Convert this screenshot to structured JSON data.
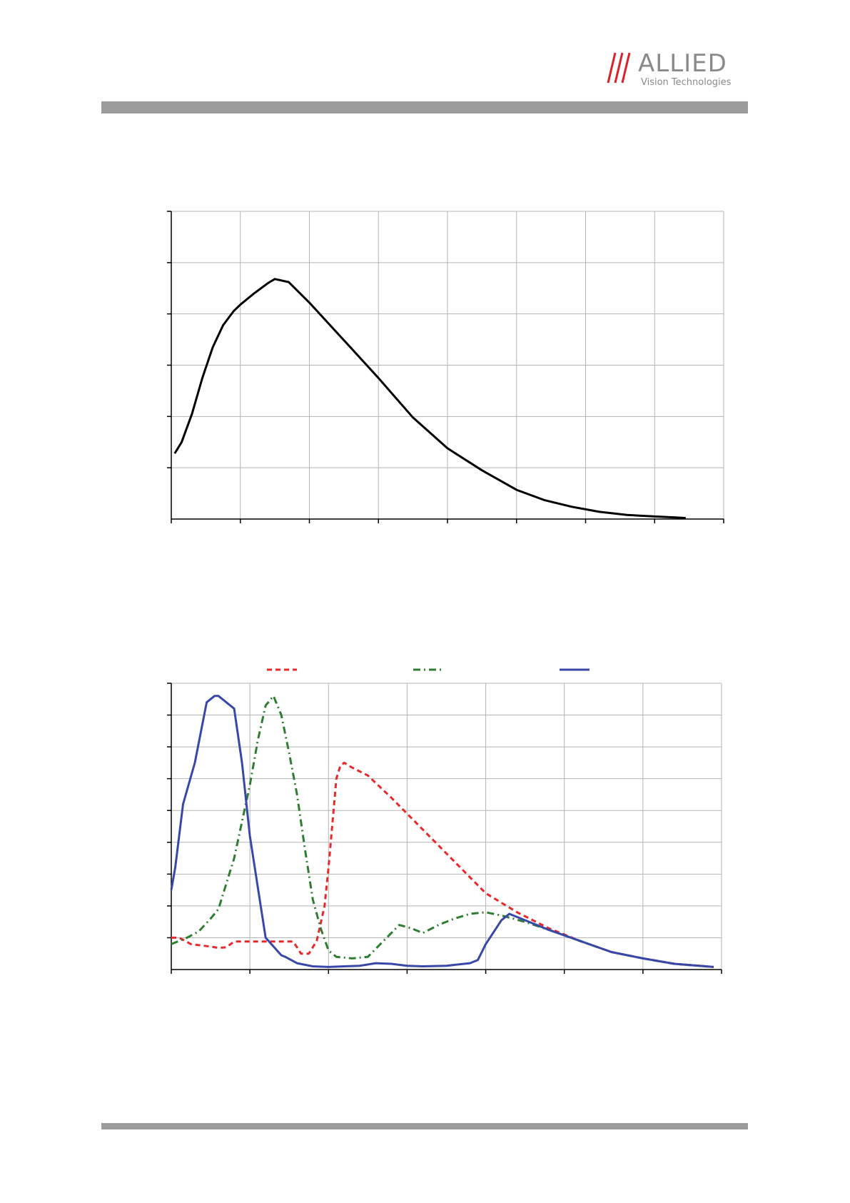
{
  "header": {
    "logo_brand": "ALLIED",
    "logo_sub": "Vision Technologies",
    "brand_color": "#d8232a",
    "rule_color": "#9c9c9c"
  },
  "chart_data": [
    {
      "type": "line",
      "title": "",
      "xlabel": "",
      "ylabel": "",
      "xlim": [
        0,
        8
      ],
      "ylim": [
        0,
        6
      ],
      "x_divisions": 8,
      "y_divisions": 6,
      "grid": true,
      "series": [
        {
          "color": "#000000",
          "dash": "solid",
          "x": [
            0.05,
            0.15,
            0.3,
            0.45,
            0.6,
            0.75,
            0.9,
            1.0,
            1.2,
            1.4,
            1.5,
            1.7,
            2.0,
            2.3,
            2.6,
            3.0,
            3.5,
            4.0,
            4.5,
            5.0,
            5.4,
            5.8,
            6.2,
            6.6,
            7.0,
            7.3,
            7.45
          ],
          "y": [
            1.28,
            1.5,
            2.05,
            2.75,
            3.35,
            3.78,
            4.05,
            4.18,
            4.4,
            4.6,
            4.68,
            4.62,
            4.22,
            3.78,
            3.34,
            2.75,
            1.98,
            1.38,
            0.95,
            0.57,
            0.37,
            0.24,
            0.14,
            0.08,
            0.05,
            0.03,
            0.02
          ]
        }
      ]
    },
    {
      "type": "line",
      "title": "",
      "xlabel": "",
      "ylabel": "",
      "xlim": [
        0,
        7
      ],
      "ylim": [
        0,
        9
      ],
      "x_divisions": 7,
      "y_divisions": 9,
      "grid": true,
      "legend": "top",
      "series": [
        {
          "color": "#e8282a",
          "dash": "dashed",
          "x": [
            0.0,
            0.1,
            0.25,
            0.5,
            0.6,
            0.7,
            0.8,
            1.0,
            1.3,
            1.55,
            1.6,
            1.65,
            1.75,
            1.85,
            1.95,
            2.0,
            2.05,
            2.1,
            2.15,
            2.2,
            2.3,
            2.5,
            2.8,
            3.2,
            3.6,
            4.0,
            4.4,
            4.8,
            5.2,
            5.6,
            6.0,
            6.4,
            6.9
          ],
          "y": [
            1.0,
            1.0,
            0.8,
            0.72,
            0.68,
            0.7,
            0.88,
            0.88,
            0.88,
            0.88,
            0.7,
            0.5,
            0.5,
            0.9,
            2.0,
            3.2,
            4.6,
            6.0,
            6.4,
            6.5,
            6.35,
            6.1,
            5.4,
            4.4,
            3.4,
            2.4,
            1.8,
            1.3,
            0.9,
            0.55,
            0.35,
            0.18,
            0.08
          ]
        },
        {
          "color": "#2e7d32",
          "dash": "dashdot",
          "x": [
            0.0,
            0.1,
            0.2,
            0.35,
            0.5,
            0.6,
            0.8,
            1.0,
            1.1,
            1.2,
            1.3,
            1.4,
            1.5,
            1.6,
            1.7,
            1.8,
            1.9,
            2.0,
            2.1,
            2.3,
            2.5,
            2.7,
            2.9,
            3.05,
            3.2,
            3.4,
            3.6,
            3.8,
            4.0,
            4.2,
            4.5,
            4.8,
            5.2,
            5.6,
            6.0,
            6.4,
            6.9
          ],
          "y": [
            0.8,
            0.9,
            1.0,
            1.2,
            1.6,
            1.9,
            3.5,
            5.8,
            7.2,
            8.3,
            8.6,
            8.0,
            6.8,
            5.5,
            3.8,
            2.2,
            1.3,
            0.6,
            0.4,
            0.35,
            0.4,
            0.9,
            1.4,
            1.3,
            1.15,
            1.4,
            1.6,
            1.75,
            1.8,
            1.7,
            1.5,
            1.25,
            0.9,
            0.55,
            0.35,
            0.18,
            0.08
          ]
        },
        {
          "color": "#3848a8",
          "dash": "solid",
          "x": [
            0.0,
            0.05,
            0.15,
            0.3,
            0.45,
            0.55,
            0.6,
            0.7,
            0.8,
            0.9,
            1.0,
            1.2,
            1.4,
            1.45,
            1.6,
            1.8,
            2.0,
            2.2,
            2.4,
            2.6,
            2.8,
            3.0,
            3.2,
            3.5,
            3.8,
            3.9,
            4.0,
            4.2,
            4.3,
            4.5,
            4.8,
            5.2,
            5.6,
            6.0,
            6.4,
            6.9
          ],
          "y": [
            2.5,
            3.2,
            5.2,
            6.5,
            8.4,
            8.6,
            8.6,
            8.4,
            8.2,
            6.5,
            4.2,
            1.0,
            0.45,
            0.4,
            0.2,
            0.1,
            0.08,
            0.1,
            0.12,
            0.2,
            0.18,
            0.12,
            0.1,
            0.12,
            0.2,
            0.3,
            0.8,
            1.55,
            1.75,
            1.55,
            1.25,
            0.9,
            0.55,
            0.35,
            0.18,
            0.08
          ]
        }
      ]
    }
  ]
}
